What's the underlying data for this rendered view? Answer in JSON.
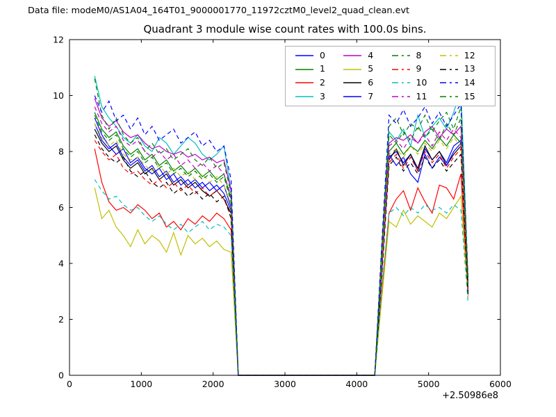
{
  "header": {
    "data_file_label": "Data file: modeM0/AS1A04_164T01_9000001770_11972cztM0_level2_quad_clean.evt"
  },
  "chart_data": {
    "type": "line",
    "title": "Quadrant 3 module wise count rates with 100.0s bins.",
    "xlabel": "",
    "ylabel": "",
    "x_offset_label": "+2.50986e8",
    "xlim": [
      0,
      6000
    ],
    "ylim": [
      0,
      12
    ],
    "xticks": [
      0,
      1000,
      2000,
      3000,
      4000,
      5000,
      6000
    ],
    "yticks": [
      0,
      2,
      4,
      6,
      8,
      10,
      12
    ],
    "grid": false,
    "legend_position": "upper center inside axes",
    "legend_columns": 4,
    "bin_seconds": 100.0,
    "x": [
      350,
      450,
      550,
      650,
      750,
      850,
      950,
      1050,
      1150,
      1250,
      1350,
      1450,
      1550,
      1650,
      1750,
      1850,
      1950,
      2050,
      2150,
      2250,
      2350,
      2450,
      2550,
      2650,
      2750,
      2850,
      2950,
      3050,
      3150,
      3250,
      3350,
      3450,
      3550,
      3650,
      3750,
      3850,
      3950,
      4050,
      4150,
      4250,
      4350,
      4450,
      4550,
      4650,
      4750,
      4850,
      4950,
      5050,
      5150,
      5250,
      5350,
      5450,
      5550
    ],
    "series": [
      {
        "name": "0",
        "color": "#0000ff",
        "style": "solid",
        "values": [
          9.0,
          8.4,
          8.1,
          8.3,
          7.8,
          7.5,
          7.7,
          7.3,
          7.5,
          7.1,
          7.3,
          6.9,
          7.1,
          6.8,
          7.0,
          6.7,
          6.9,
          6.6,
          6.8,
          6.0,
          0,
          0,
          0,
          0,
          0,
          0,
          0,
          0,
          0,
          0,
          0,
          0,
          0,
          0,
          0,
          0,
          0,
          0,
          0,
          0,
          3.9,
          7.8,
          8.0,
          7.6,
          7.9,
          7.3,
          8.1,
          7.7,
          8.0,
          7.6,
          8.2,
          8.4,
          3.1
        ]
      },
      {
        "name": "1",
        "color": "#008000",
        "style": "solid",
        "values": [
          9.4,
          8.8,
          8.5,
          8.7,
          8.2,
          7.9,
          8.1,
          7.7,
          7.9,
          7.5,
          7.7,
          7.3,
          7.5,
          7.2,
          7.4,
          7.1,
          7.3,
          7.0,
          7.2,
          6.3,
          0,
          0,
          0,
          0,
          0,
          0,
          0,
          0,
          0,
          0,
          0,
          0,
          0,
          0,
          0,
          0,
          0,
          0,
          0,
          0,
          4.1,
          8.0,
          8.3,
          7.9,
          8.2,
          8.0,
          8.4,
          8.1,
          8.5,
          8.2,
          8.6,
          8.3,
          3.2
        ]
      },
      {
        "name": "2",
        "color": "#ff0000",
        "style": "solid",
        "values": [
          8.1,
          6.9,
          6.2,
          5.9,
          6.0,
          5.8,
          6.1,
          5.9,
          5.6,
          5.8,
          5.3,
          5.5,
          5.2,
          5.6,
          5.4,
          5.7,
          5.5,
          5.8,
          5.6,
          5.2,
          0,
          0,
          0,
          0,
          0,
          0,
          0,
          0,
          0,
          0,
          0,
          0,
          0,
          0,
          0,
          0,
          0,
          0,
          0,
          0,
          3.0,
          5.8,
          6.3,
          6.6,
          5.9,
          6.7,
          6.2,
          5.8,
          6.8,
          6.7,
          6.3,
          7.2,
          2.9
        ]
      },
      {
        "name": "3",
        "color": "#00bfbf",
        "style": "solid",
        "values": [
          10.7,
          9.6,
          9.2,
          8.9,
          8.5,
          8.3,
          8.6,
          8.2,
          8.0,
          8.5,
          8.3,
          7.9,
          8.2,
          8.5,
          8.3,
          7.9,
          7.7,
          7.9,
          8.2,
          6.6,
          0,
          0,
          0,
          0,
          0,
          0,
          0,
          0,
          0,
          0,
          0,
          0,
          0,
          0,
          0,
          0,
          0,
          0,
          0,
          0,
          4.5,
          8.7,
          8.4,
          8.8,
          8.2,
          9.3,
          8.5,
          8.9,
          9.2,
          8.8,
          9.4,
          10.2,
          3.4
        ]
      },
      {
        "name": "4",
        "color": "#bf00bf",
        "style": "solid",
        "values": [
          9.9,
          9.2,
          8.9,
          9.1,
          8.7,
          8.5,
          8.6,
          8.3,
          8.1,
          8.2,
          8.0,
          7.9,
          8.0,
          7.8,
          7.9,
          7.7,
          7.8,
          7.6,
          7.7,
          6.6,
          0,
          0,
          0,
          0,
          0,
          0,
          0,
          0,
          0,
          0,
          0,
          0,
          0,
          0,
          0,
          0,
          0,
          0,
          0,
          0,
          4.3,
          8.3,
          8.5,
          8.4,
          8.6,
          8.3,
          8.7,
          8.9,
          8.5,
          8.8,
          8.6,
          8.9,
          3.3
        ]
      },
      {
        "name": "5",
        "color": "#bfbf00",
        "style": "solid",
        "values": [
          6.7,
          5.6,
          5.9,
          5.3,
          5.0,
          4.6,
          5.2,
          4.7,
          5.0,
          4.8,
          4.4,
          5.1,
          4.3,
          5.0,
          4.7,
          4.9,
          4.6,
          4.8,
          4.5,
          4.4,
          0,
          0,
          0,
          0,
          0,
          0,
          0,
          0,
          0,
          0,
          0,
          0,
          0,
          0,
          0,
          0,
          0,
          0,
          0,
          0,
          2.8,
          5.5,
          5.3,
          5.9,
          5.4,
          5.7,
          5.5,
          5.3,
          5.8,
          5.6,
          6.0,
          6.4,
          2.8
        ]
      },
      {
        "name": "6",
        "color": "#000000",
        "style": "solid",
        "values": [
          8.8,
          8.3,
          8.0,
          8.2,
          7.7,
          7.4,
          7.6,
          7.2,
          7.4,
          7.0,
          7.2,
          6.8,
          7.0,
          6.7,
          6.9,
          6.6,
          6.4,
          6.6,
          6.3,
          5.8,
          0,
          0,
          0,
          0,
          0,
          0,
          0,
          0,
          0,
          0,
          0,
          0,
          0,
          0,
          0,
          0,
          0,
          0,
          0,
          0,
          3.9,
          7.7,
          8.1,
          7.5,
          7.9,
          7.4,
          8.2,
          7.7,
          8.0,
          7.5,
          7.9,
          8.2,
          3.0
        ]
      },
      {
        "name": "7",
        "color": "#0000ff",
        "style": "solid",
        "values": [
          9.2,
          8.6,
          8.2,
          7.9,
          8.1,
          7.6,
          7.8,
          7.4,
          7.2,
          7.4,
          7.0,
          7.2,
          6.8,
          7.0,
          6.7,
          6.9,
          6.6,
          6.8,
          6.5,
          5.9,
          0,
          0,
          0,
          0,
          0,
          0,
          0,
          0,
          0,
          0,
          0,
          0,
          0,
          0,
          0,
          0,
          0,
          0,
          0,
          0,
          3.8,
          7.9,
          7.5,
          7.8,
          7.2,
          6.9,
          7.9,
          7.4,
          7.8,
          7.5,
          8.0,
          8.3,
          3.0
        ]
      },
      {
        "name": "8",
        "color": "#008000",
        "style": "dashed",
        "values": [
          10.6,
          9.3,
          8.8,
          9.2,
          8.6,
          8.3,
          8.5,
          8.0,
          8.3,
          7.9,
          8.1,
          7.7,
          7.9,
          8.1,
          7.7,
          7.5,
          7.8,
          7.4,
          7.6,
          6.5,
          0,
          0,
          0,
          0,
          0,
          0,
          0,
          0,
          0,
          0,
          0,
          0,
          0,
          0,
          0,
          0,
          0,
          0,
          0,
          0,
          4.6,
          8.9,
          9.2,
          8.6,
          9.0,
          8.8,
          9.3,
          8.7,
          9.1,
          9.4,
          8.8,
          9.6,
          3.4
        ]
      },
      {
        "name": "9",
        "color": "#ff0000",
        "style": "dashed",
        "values": [
          8.4,
          8.0,
          7.7,
          7.9,
          7.4,
          7.2,
          7.3,
          7.0,
          6.8,
          7.0,
          6.7,
          6.9,
          6.6,
          6.8,
          6.5,
          6.7,
          6.4,
          6.6,
          6.3,
          5.7,
          0,
          0,
          0,
          0,
          0,
          0,
          0,
          0,
          0,
          0,
          0,
          0,
          0,
          0,
          0,
          0,
          0,
          0,
          0,
          0,
          3.7,
          7.6,
          7.9,
          7.4,
          7.8,
          7.3,
          8.0,
          7.6,
          7.9,
          7.4,
          7.8,
          8.1,
          3.0
        ]
      },
      {
        "name": "10",
        "color": "#00bfbf",
        "style": "dashed",
        "values": [
          7.0,
          6.6,
          6.3,
          6.4,
          6.1,
          5.9,
          6.0,
          5.7,
          5.5,
          5.7,
          5.4,
          5.2,
          5.4,
          5.1,
          5.3,
          5.5,
          5.2,
          5.4,
          5.3,
          5.0,
          0,
          0,
          0,
          0,
          0,
          0,
          0,
          0,
          0,
          0,
          0,
          0,
          0,
          0,
          0,
          0,
          0,
          0,
          0,
          0,
          3.2,
          5.8,
          6.0,
          5.7,
          6.0,
          5.8,
          6.1,
          5.9,
          6.0,
          5.8,
          6.1,
          5.9,
          2.6
        ]
      },
      {
        "name": "11",
        "color": "#bf00bf",
        "style": "dashed",
        "values": [
          9.6,
          9.0,
          8.7,
          8.9,
          8.4,
          8.2,
          8.4,
          8.0,
          7.8,
          8.0,
          7.7,
          7.9,
          7.5,
          7.7,
          7.4,
          7.6,
          7.3,
          7.5,
          7.2,
          6.4,
          0,
          0,
          0,
          0,
          0,
          0,
          0,
          0,
          0,
          0,
          0,
          0,
          0,
          0,
          0,
          0,
          0,
          0,
          0,
          0,
          4.2,
          8.2,
          8.4,
          8.1,
          8.5,
          8.3,
          8.6,
          8.2,
          8.7,
          8.4,
          8.8,
          8.5,
          3.2
        ]
      },
      {
        "name": "12",
        "color": "#bfbf00",
        "style": "dashed",
        "values": [
          9.0,
          8.5,
          8.2,
          8.4,
          7.9,
          7.7,
          7.8,
          7.5,
          7.3,
          7.5,
          7.2,
          7.4,
          7.1,
          7.3,
          7.0,
          7.2,
          6.9,
          7.1,
          6.8,
          6.1,
          0,
          0,
          0,
          0,
          0,
          0,
          0,
          0,
          0,
          0,
          0,
          0,
          0,
          0,
          0,
          0,
          0,
          0,
          0,
          0,
          4.0,
          7.9,
          8.1,
          7.8,
          8.2,
          7.9,
          8.3,
          8.0,
          8.4,
          8.1,
          8.5,
          8.2,
          3.1
        ]
      },
      {
        "name": "13",
        "color": "#000000",
        "style": "dashed",
        "values": [
          8.6,
          8.1,
          7.8,
          7.6,
          7.8,
          7.3,
          7.1,
          7.3,
          6.9,
          6.7,
          6.9,
          6.5,
          6.7,
          6.4,
          6.6,
          6.3,
          6.5,
          6.2,
          6.4,
          5.6,
          0,
          0,
          0,
          0,
          0,
          0,
          0,
          0,
          0,
          0,
          0,
          0,
          0,
          0,
          0,
          0,
          0,
          0,
          0,
          0,
          3.6,
          7.5,
          7.8,
          7.3,
          7.6,
          7.2,
          7.8,
          7.4,
          7.7,
          7.3,
          7.6,
          7.9,
          2.9
        ]
      },
      {
        "name": "14",
        "color": "#0000ff",
        "style": "dashed",
        "values": [
          10.0,
          9.4,
          9.8,
          9.1,
          9.3,
          8.8,
          9.2,
          8.6,
          8.9,
          8.4,
          8.6,
          8.8,
          8.3,
          8.5,
          8.7,
          8.2,
          8.4,
          8.0,
          8.2,
          7.0,
          0,
          0,
          0,
          0,
          0,
          0,
          0,
          0,
          0,
          0,
          0,
          0,
          0,
          0,
          0,
          0,
          0,
          0,
          0,
          0,
          4.8,
          9.3,
          9.0,
          9.5,
          8.9,
          9.2,
          9.6,
          9.0,
          9.4,
          8.9,
          9.3,
          9.7,
          3.5
        ]
      },
      {
        "name": "15",
        "color": "#008000",
        "style": "dashed",
        "values": [
          9.3,
          8.7,
          8.4,
          8.6,
          8.1,
          7.8,
          8.0,
          7.6,
          7.8,
          7.4,
          7.6,
          7.2,
          7.4,
          7.1,
          7.3,
          7.0,
          7.2,
          6.9,
          7.1,
          6.2,
          0,
          0,
          0,
          0,
          0,
          0,
          0,
          0,
          0,
          0,
          0,
          0,
          0,
          0,
          0,
          0,
          0,
          0,
          0,
          0,
          4.4,
          8.6,
          8.3,
          8.7,
          8.4,
          8.9,
          8.5,
          8.8,
          8.4,
          9.0,
          8.6,
          9.2,
          3.3
        ]
      }
    ]
  },
  "style": {
    "frame_color": "#000000",
    "legend_border_color": "#b0b0b0",
    "background": "#ffffff"
  }
}
